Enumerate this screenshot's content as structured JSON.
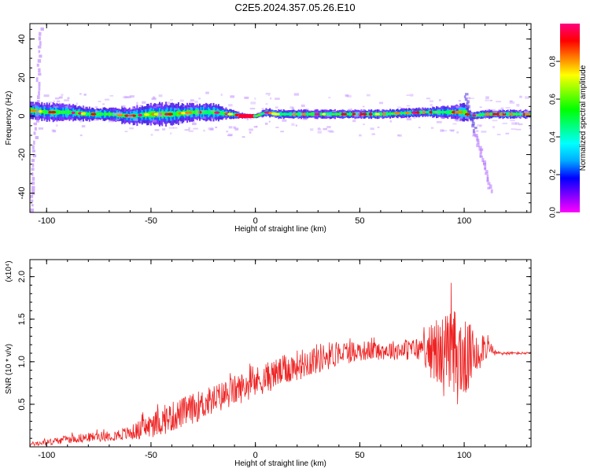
{
  "title": "C2E5.2024.357.05.26.E10",
  "chart_data": [
    {
      "type": "heatmap",
      "xlabel": "Height of straight line (km)",
      "ylabel": "Frequency (Hz)",
      "xlim": [
        -108,
        132
      ],
      "ylim": [
        -50,
        48
      ],
      "xticks": [
        -100,
        -50,
        0,
        50,
        100
      ],
      "yticks": [
        -40,
        -20,
        0,
        20,
        40
      ],
      "colorbar": {
        "label": "Normalized spectral amplitude",
        "range": [
          0,
          1
        ],
        "ticks": [
          "0.0",
          "0.2",
          "0.4",
          "0.6",
          "0.8"
        ],
        "tick_values": [
          0.0,
          0.2,
          0.4,
          0.6,
          0.8
        ],
        "colormap": [
          "#ff00ff",
          "#7f00ff",
          "#0000ff",
          "#00aaff",
          "#00ffff",
          "#00ff80",
          "#00ff00",
          "#80ff00",
          "#ffff00",
          "#ff8000",
          "#ff0000",
          "#ff0080"
        ]
      },
      "ridge": {
        "x": [
          -108,
          -100,
          -90,
          -80,
          -70,
          -60,
          -50,
          -40,
          -30,
          -20,
          -12,
          -5,
          0,
          5,
          10,
          20,
          40,
          60,
          80,
          95,
          100,
          103,
          110,
          120,
          132
        ],
        "center_hz": [
          3,
          2,
          2,
          1,
          1,
          0,
          1,
          1,
          2,
          2,
          1,
          0,
          0,
          2,
          1,
          1,
          1,
          1,
          2,
          2,
          2,
          0,
          1,
          1,
          1
        ],
        "halfwidth_hz": [
          4,
          4,
          4,
          3,
          3,
          4,
          5,
          5,
          4,
          4,
          2,
          1,
          1,
          2,
          2,
          2,
          2,
          2,
          2,
          3,
          4,
          2,
          2,
          2,
          2
        ]
      },
      "streaks": [
        {
          "x": [
            -108,
            -103
          ],
          "y": [
            -48,
            46
          ]
        },
        {
          "x": [
            100,
            112
          ],
          "y": [
            12,
            -38
          ]
        }
      ]
    },
    {
      "type": "line",
      "xlabel": "Height of straight line (km)",
      "ylabel": "SNR (10 * v/v)",
      "exponent": "(x10⁴)",
      "xlim": [
        -108,
        132
      ],
      "ylim": [
        0,
        22000
      ],
      "xticks": [
        -100,
        -50,
        0,
        50,
        100
      ],
      "yticks": [
        5000,
        10000,
        15000,
        20000
      ],
      "ytick_labels": [
        "0.5",
        "1.0",
        "1.5",
        "2.0"
      ],
      "series": [
        {
          "color": "#ee2222",
          "x": [
            -108,
            -100,
            -90,
            -80,
            -70,
            -60,
            -50,
            -40,
            -30,
            -20,
            -10,
            0,
            10,
            20,
            30,
            40,
            50,
            60,
            70,
            80,
            85,
            90,
            95,
            100,
            105,
            110,
            115,
            120,
            132
          ],
          "mean": [
            300,
            500,
            900,
            1100,
            1300,
            1600,
            2500,
            3500,
            4500,
            5500,
            6600,
            7600,
            8600,
            9600,
            10400,
            11000,
            11300,
            11300,
            11400,
            11500,
            11200,
            10800,
            10500,
            10200,
            11000,
            12000,
            11000,
            11000,
            11000
          ],
          "spread": [
            400,
            600,
            800,
            900,
            1000,
            1400,
            2500,
            3000,
            3000,
            3000,
            3000,
            3000,
            3000,
            3000,
            3000,
            2500,
            2000,
            1800,
            2000,
            2500,
            6000,
            8000,
            10000,
            8000,
            5000,
            3000,
            500,
            300,
            200
          ]
        }
      ]
    }
  ]
}
